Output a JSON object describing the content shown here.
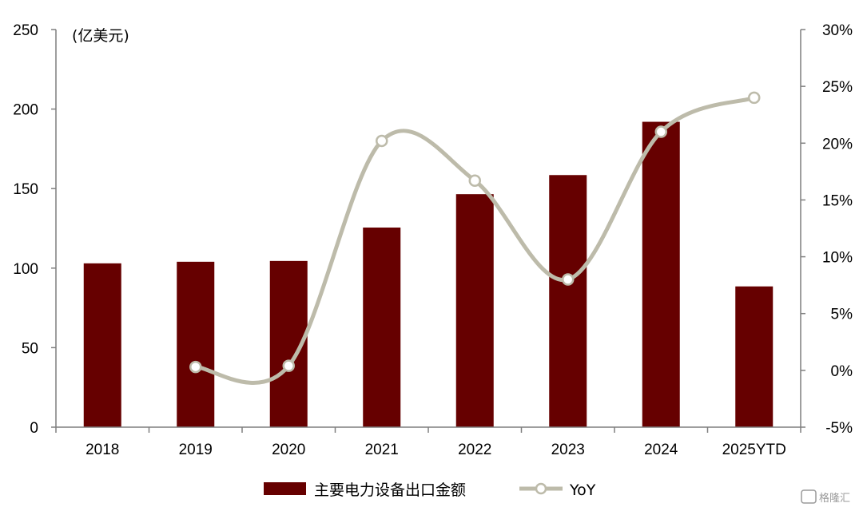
{
  "chart_data": {
    "type": "bar",
    "unit_label": "(亿美元)",
    "categories": [
      "2018",
      "2019",
      "2020",
      "2021",
      "2022",
      "2023",
      "2024",
      "2025YTD"
    ],
    "series": [
      {
        "name": "主要电力设备出口金额",
        "type": "bar",
        "axis": "left",
        "values": [
          103,
          104,
          104.5,
          125.5,
          146.5,
          158.5,
          192,
          88.5
        ]
      },
      {
        "name": "YoY",
        "type": "line",
        "axis": "right",
        "smooth": true,
        "values": [
          null,
          0.3,
          0.4,
          20.2,
          16.7,
          8.0,
          21.0,
          24.0
        ]
      }
    ],
    "y_left": {
      "min": 0,
      "max": 250,
      "ticks": [
        "0",
        "50",
        "100",
        "150",
        "200",
        "250"
      ]
    },
    "y_right": {
      "min": -5,
      "max": 30,
      "ticks": [
        "-5%",
        "0%",
        "5%",
        "10%",
        "15%",
        "20%",
        "25%",
        "30%"
      ]
    },
    "legend_position": "bottom",
    "grid": false,
    "colors": {
      "bar": "#660000",
      "line": "#BDBBAA",
      "axis": "#7f7f7f"
    }
  },
  "watermark": "格隆汇"
}
